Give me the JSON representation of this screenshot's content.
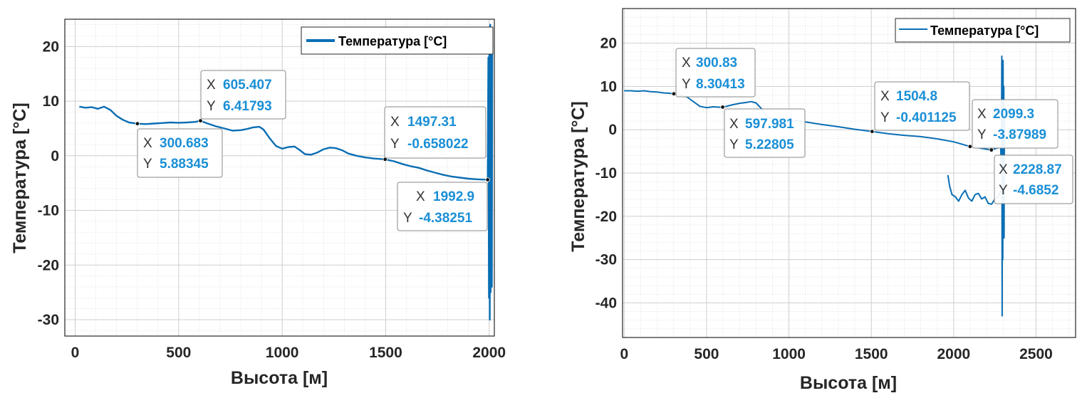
{
  "chart_data": [
    {
      "type": "line",
      "xlabel": "Высота [м]",
      "ylabel": "Температура [°C]",
      "xlim": [
        -50,
        2025
      ],
      "ylim": [
        -33,
        25
      ],
      "xticks": [
        0,
        500,
        1000,
        1500,
        2000
      ],
      "yticks": [
        -30,
        -20,
        -10,
        0,
        10,
        20
      ],
      "grid": true,
      "minor_grid": true,
      "legend_position": "top-right",
      "color": "#0a6eb4",
      "series": [
        {
          "name": "Температура [°C]",
          "x": [
            20,
            50,
            80,
            110,
            140,
            170,
            200,
            230,
            260,
            300.683,
            340,
            380,
            420,
            460,
            500,
            540,
            580,
            605.407,
            640,
            680,
            720,
            760,
            800,
            830,
            860,
            890,
            910,
            940,
            970,
            1000,
            1030,
            1060,
            1090,
            1110,
            1140,
            1170,
            1200,
            1230,
            1260,
            1290,
            1320,
            1360,
            1400,
            1440,
            1480,
            1497.31,
            1540,
            1580,
            1620,
            1660,
            1700,
            1740,
            1780,
            1820,
            1860,
            1900,
            1940,
            1970,
            1992.9,
            1996,
            1999,
            2001,
            2003,
            2005,
            2007,
            2008,
            2010,
            2012,
            2013,
            2015
          ],
          "y": [
            9,
            8.8,
            8.9,
            8.6,
            9,
            8.4,
            7.3,
            6.6,
            6.1,
            5.88345,
            5.8,
            5.9,
            6,
            6.1,
            6.05,
            6.1,
            6.2,
            6.41793,
            5.9,
            5.4,
            5,
            4.6,
            4.7,
            4.9,
            5.2,
            5.3,
            4.8,
            3.2,
            1.8,
            1.3,
            1.6,
            1.7,
            0.9,
            0.3,
            0.2,
            0.6,
            1.2,
            1.5,
            1.4,
            1,
            0.4,
            0,
            -0.3,
            -0.5,
            -0.6,
            -0.658022,
            -1,
            -1.5,
            -1.9,
            -2.2,
            -2.7,
            -3.1,
            -3.5,
            -3.8,
            -4,
            -4.2,
            -4.3,
            -4.35,
            -4.38251,
            18,
            -26,
            23,
            -30,
            24,
            -25,
            23,
            -20,
            22,
            -24,
            21
          ]
        }
      ],
      "datatips": [
        {
          "x": "300.683",
          "y": "5.88345"
        },
        {
          "x": "605.407",
          "y": "6.41793"
        },
        {
          "x": "1497.31",
          "y": "-0.658022"
        },
        {
          "x": "1992.9",
          "y": "-4.38251"
        }
      ]
    },
    {
      "type": "line",
      "xlabel": "Высота [м]",
      "ylabel": "Температура [°C]",
      "xlim": [
        -10,
        2740
      ],
      "ylim": [
        -48,
        28
      ],
      "xticks": [
        0,
        500,
        1000,
        1500,
        2000,
        2500
      ],
      "yticks": [
        -40,
        -30,
        -20,
        -10,
        0,
        10,
        20
      ],
      "grid": true,
      "minor_grid": true,
      "legend_position": "top-right",
      "color": "#0a6eb4",
      "series": [
        {
          "name": "Температура [°C]",
          "x": [
            0,
            40,
            80,
            120,
            160,
            200,
            240,
            280,
            300.83,
            340,
            380,
            420,
            460,
            500,
            540,
            580,
            597.981,
            620,
            660,
            700,
            740,
            770,
            800,
            830,
            850,
            870,
            900,
            950,
            1000,
            1100,
            1200,
            1300,
            1400,
            1504.8,
            1600,
            1700,
            1800,
            1900,
            2000,
            2099.3,
            2150,
            2200,
            2228.87,
            2260,
            2285,
            2290,
            2292,
            2294,
            2296,
            2298,
            2300,
            2302,
            2304,
            2306,
            2308,
            2310
          ],
          "y": [
            9,
            9,
            8.9,
            9,
            8.8,
            8.7,
            8.5,
            8.4,
            8.30413,
            8,
            7.6,
            6.5,
            5.4,
            5.1,
            5.3,
            5.2,
            5.22805,
            5.4,
            5.8,
            6.1,
            6.3,
            6.5,
            6.2,
            5,
            3.8,
            3,
            2.6,
            2.4,
            2.3,
            1.8,
            1.2,
            0.7,
            0.1,
            -0.401125,
            -0.9,
            -1.3,
            -1.6,
            -2.1,
            -2.8,
            -3.87989,
            -4.2,
            -4.5,
            -4.6852,
            -4.3,
            -4,
            -10,
            17,
            -43,
            14,
            -30,
            16,
            -20,
            10,
            -25,
            5,
            -4
          ],
          "color": "#0a6eb4"
        },
        {
          "name": "",
          "x": [
            1965,
            1975,
            1990,
            2010,
            2030,
            2050,
            2070,
            2090,
            2110,
            2130,
            2150,
            2170,
            2190,
            2210,
            2230,
            2250,
            2270,
            2290
          ],
          "y": [
            -10.5,
            -13,
            -15,
            -15.5,
            -16.5,
            -15,
            -14,
            -15.8,
            -16.5,
            -15,
            -14.7,
            -16,
            -15.5,
            -17,
            -17.2,
            -16,
            -15.5,
            -14
          ]
        }
      ],
      "datatips": [
        {
          "x": "300.83",
          "y": "8.30413"
        },
        {
          "x": "597.981",
          "y": "5.22805"
        },
        {
          "x": "1504.8",
          "y": "-0.401125"
        },
        {
          "x": "2099.3",
          "y": "-3.87989"
        },
        {
          "x": "2228.87",
          "y": "-4.6852"
        }
      ]
    }
  ],
  "tip_key_x": "X",
  "tip_key_y": "Y"
}
